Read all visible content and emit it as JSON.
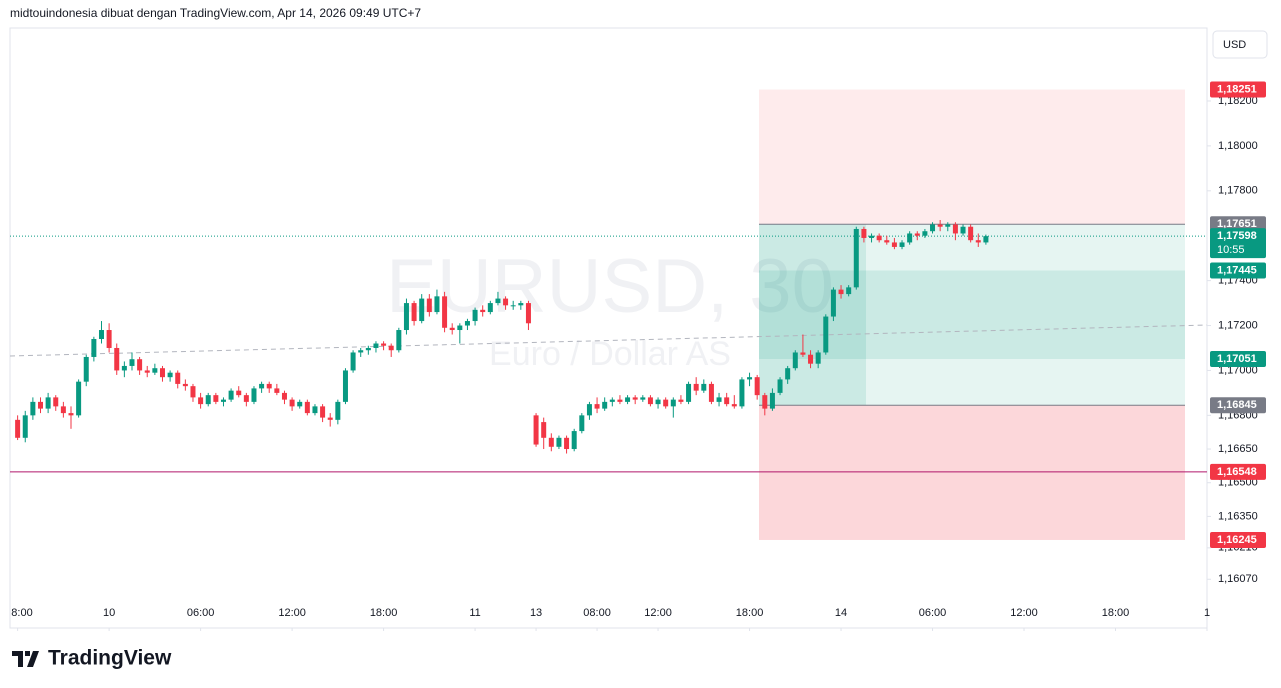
{
  "chart_data": {
    "type": "candlestick",
    "attribution": "midtouindonesia dibuat dengan TradingView.com, Apr 14, 2026 09:49 UTC+7",
    "currency": "USD",
    "watermark": "EURUSD, 30",
    "description": "Euro / Dollar AS",
    "brand": "TradingView",
    "up_color": "#089981",
    "down_color": "#f23645",
    "ylim": [
      1.15853,
      1.18525
    ],
    "yticks": [
      {
        "value": 1.182,
        "label": "1,18200"
      },
      {
        "value": 1.18,
        "label": "1,18000"
      },
      {
        "value": 1.178,
        "label": "1,17800"
      },
      {
        "value": 1.174,
        "label": "1,17400"
      },
      {
        "value": 1.172,
        "label": "1,17200"
      },
      {
        "value": 1.17,
        "label": "1,17000"
      },
      {
        "value": 1.168,
        "label": "1,16800"
      },
      {
        "value": 1.1665,
        "label": "1,16650"
      },
      {
        "value": 1.165,
        "label": "1,16500"
      },
      {
        "value": 1.1635,
        "label": "1,16350"
      },
      {
        "value": 1.1621,
        "label": "1,16210"
      },
      {
        "value": 1.1607,
        "label": "1,16070"
      }
    ],
    "xlim": [
      -1,
      156
    ],
    "xticks": [
      {
        "value": 0,
        "label": "8:00"
      },
      {
        "value": 12,
        "label": "10"
      },
      {
        "value": 24,
        "label": "06:00"
      },
      {
        "value": 36,
        "label": "12:00"
      },
      {
        "value": 48,
        "label": "18:00"
      },
      {
        "value": 60,
        "label": "11"
      },
      {
        "value": 68,
        "label": "13"
      },
      {
        "value": 76,
        "label": "08:00"
      },
      {
        "value": 84,
        "label": "12:00"
      },
      {
        "value": 96,
        "label": "18:00"
      },
      {
        "value": 108,
        "label": "14"
      },
      {
        "value": 120,
        "label": "06:00"
      },
      {
        "value": 132,
        "label": "12:00"
      },
      {
        "value": 144,
        "label": "18:00"
      },
      {
        "value": 156,
        "label": "1"
      }
    ],
    "price_labels": [
      {
        "value": 1.18251,
        "label": "1,18251",
        "color": "#f23645"
      },
      {
        "value": 1.17651,
        "label": "1,17651",
        "color": "#787b86"
      },
      {
        "value": 1.17598,
        "label": "1,17598",
        "countdown": "10:55",
        "color": "#089981"
      },
      {
        "value": 1.17445,
        "label": "1,17445",
        "color": "#089981"
      },
      {
        "value": 1.17051,
        "label": "1,17051",
        "color": "#089981"
      },
      {
        "value": 1.16845,
        "label": "1,16845",
        "color": "#787b86"
      },
      {
        "value": 1.16548,
        "label": "1,16548",
        "color": "#f23645"
      },
      {
        "value": 1.16245,
        "label": "1,16245",
        "color": "#f23645"
      }
    ],
    "candles": [
      [
        1.1678,
        1.168,
        1.1669,
        1.167
      ],
      [
        1.167,
        1.1682,
        1.1668,
        1.168
      ],
      [
        1.168,
        1.1688,
        1.1678,
        1.1686
      ],
      [
        1.1686,
        1.1688,
        1.1681,
        1.1683
      ],
      [
        1.1683,
        1.169,
        1.1681,
        1.1688
      ],
      [
        1.1688,
        1.1689,
        1.1682,
        1.1684
      ],
      [
        1.1684,
        1.1686,
        1.1679,
        1.1681
      ],
      [
        1.1681,
        1.1684,
        1.1674,
        1.168
      ],
      [
        1.168,
        1.1696,
        1.1679,
        1.1695
      ],
      [
        1.1695,
        1.1707,
        1.1693,
        1.1706
      ],
      [
        1.1706,
        1.1715,
        1.1704,
        1.1714
      ],
      [
        1.1714,
        1.1722,
        1.1712,
        1.1718
      ],
      [
        1.1718,
        1.1721,
        1.1708,
        1.171
      ],
      [
        1.171,
        1.1712,
        1.1698,
        1.17
      ],
      [
        1.17,
        1.1704,
        1.1697,
        1.1702
      ],
      [
        1.1702,
        1.1708,
        1.17,
        1.1705
      ],
      [
        1.1705,
        1.1706,
        1.1698,
        1.17
      ],
      [
        1.17,
        1.1702,
        1.1697,
        1.1699
      ],
      [
        1.1699,
        1.1703,
        1.1698,
        1.1701
      ],
      [
        1.1701,
        1.1702,
        1.1695,
        1.1697
      ],
      [
        1.1697,
        1.17,
        1.1695,
        1.1699
      ],
      [
        1.1699,
        1.17,
        1.1692,
        1.1694
      ],
      [
        1.1694,
        1.1696,
        1.1691,
        1.1693
      ],
      [
        1.1693,
        1.1694,
        1.1686,
        1.1688
      ],
      [
        1.1688,
        1.169,
        1.1683,
        1.1685
      ],
      [
        1.1685,
        1.169,
        1.1684,
        1.1689
      ],
      [
        1.1689,
        1.169,
        1.1685,
        1.1686
      ],
      [
        1.1686,
        1.1688,
        1.1684,
        1.1687
      ],
      [
        1.1687,
        1.1692,
        1.1686,
        1.1691
      ],
      [
        1.1691,
        1.1693,
        1.1688,
        1.1689
      ],
      [
        1.1689,
        1.169,
        1.1684,
        1.1686
      ],
      [
        1.1686,
        1.1693,
        1.1685,
        1.1692
      ],
      [
        1.1692,
        1.1695,
        1.169,
        1.1694
      ],
      [
        1.1694,
        1.1695,
        1.169,
        1.1692
      ],
      [
        1.1692,
        1.1694,
        1.1689,
        1.169
      ],
      [
        1.169,
        1.1691,
        1.1685,
        1.1687
      ],
      [
        1.1687,
        1.1688,
        1.1682,
        1.1684
      ],
      [
        1.1684,
        1.1687,
        1.1683,
        1.1686
      ],
      [
        1.1686,
        1.1687,
        1.168,
        1.1681
      ],
      [
        1.1681,
        1.1685,
        1.168,
        1.1684
      ],
      [
        1.1684,
        1.1685,
        1.1677,
        1.1679
      ],
      [
        1.1679,
        1.1681,
        1.1675,
        1.1678
      ],
      [
        1.1678,
        1.1687,
        1.1676,
        1.1686
      ],
      [
        1.1686,
        1.1701,
        1.1685,
        1.17
      ],
      [
        1.17,
        1.1709,
        1.1699,
        1.1708
      ],
      [
        1.1708,
        1.171,
        1.1706,
        1.1709
      ],
      [
        1.1709,
        1.1711,
        1.1707,
        1.171
      ],
      [
        1.171,
        1.1713,
        1.1708,
        1.1712
      ],
      [
        1.1712,
        1.1713,
        1.1709,
        1.1711
      ],
      [
        1.1711,
        1.1712,
        1.1706,
        1.1709
      ],
      [
        1.1709,
        1.1719,
        1.1708,
        1.1718
      ],
      [
        1.1718,
        1.1732,
        1.1716,
        1.173
      ],
      [
        1.173,
        1.1731,
        1.172,
        1.1722
      ],
      [
        1.1722,
        1.1734,
        1.1721,
        1.1732
      ],
      [
        1.1732,
        1.1734,
        1.1724,
        1.1726
      ],
      [
        1.1726,
        1.1736,
        1.1725,
        1.1733
      ],
      [
        1.1733,
        1.1735,
        1.1717,
        1.1719
      ],
      [
        1.1719,
        1.1721,
        1.1716,
        1.1718
      ],
      [
        1.1718,
        1.1721,
        1.1712,
        1.172
      ],
      [
        1.172,
        1.1723,
        1.1718,
        1.1722
      ],
      [
        1.1722,
        1.1728,
        1.172,
        1.1727
      ],
      [
        1.1727,
        1.1729,
        1.1724,
        1.1726
      ],
      [
        1.1726,
        1.1731,
        1.1725,
        1.173
      ],
      [
        1.173,
        1.1735,
        1.1729,
        1.1732
      ],
      [
        1.1732,
        1.1733,
        1.1727,
        1.1729
      ],
      [
        1.1729,
        1.1731,
        1.1727,
        1.1729
      ],
      [
        1.1729,
        1.1731,
        1.1727,
        1.173
      ],
      [
        1.173,
        1.1731,
        1.1718,
        1.1721
      ],
      [
        1.168,
        1.1681,
        1.1666,
        1.1667
      ],
      [
        1.1677,
        1.1679,
        1.1665,
        1.167
      ],
      [
        1.167,
        1.1672,
        1.1664,
        1.1666
      ],
      [
        1.1666,
        1.1671,
        1.1665,
        1.167
      ],
      [
        1.167,
        1.1671,
        1.1663,
        1.1665
      ],
      [
        1.1665,
        1.1674,
        1.1664,
        1.1673
      ],
      [
        1.1673,
        1.1681,
        1.1672,
        1.168
      ],
      [
        1.168,
        1.1686,
        1.1678,
        1.1685
      ],
      [
        1.1685,
        1.1688,
        1.1681,
        1.1683
      ],
      [
        1.1683,
        1.1688,
        1.1682,
        1.1686
      ],
      [
        1.1686,
        1.1688,
        1.1684,
        1.1687
      ],
      [
        1.1687,
        1.1689,
        1.1685,
        1.1686
      ],
      [
        1.1686,
        1.1689,
        1.1685,
        1.1688
      ],
      [
        1.1688,
        1.1689,
        1.1685,
        1.1687
      ],
      [
        1.1687,
        1.1689,
        1.1686,
        1.1688
      ],
      [
        1.1688,
        1.1689,
        1.1684,
        1.1685
      ],
      [
        1.1685,
        1.1688,
        1.1683,
        1.1687
      ],
      [
        1.1687,
        1.1688,
        1.1683,
        1.1684
      ],
      [
        1.1684,
        1.1688,
        1.1679,
        1.1687
      ],
      [
        1.1687,
        1.1689,
        1.1685,
        1.1686
      ],
      [
        1.1686,
        1.1695,
        1.1685,
        1.1694
      ],
      [
        1.1694,
        1.1697,
        1.1689,
        1.1691
      ],
      [
        1.1691,
        1.1696,
        1.169,
        1.1694
      ],
      [
        1.1694,
        1.1695,
        1.1685,
        1.1686
      ],
      [
        1.1686,
        1.169,
        1.1684,
        1.1688
      ],
      [
        1.1688,
        1.169,
        1.1684,
        1.1685
      ],
      [
        1.1685,
        1.1689,
        1.1683,
        1.1684
      ],
      [
        1.1684,
        1.1697,
        1.1683,
        1.1696
      ],
      [
        1.1696,
        1.1699,
        1.1693,
        1.1697
      ],
      [
        1.1697,
        1.1698,
        1.1687,
        1.1689
      ],
      [
        1.1689,
        1.169,
        1.168,
        1.1683
      ],
      [
        1.1683,
        1.1692,
        1.1682,
        1.169
      ],
      [
        1.169,
        1.1697,
        1.1689,
        1.1696
      ],
      [
        1.1696,
        1.1702,
        1.1694,
        1.1701
      ],
      [
        1.1701,
        1.1709,
        1.17,
        1.1708
      ],
      [
        1.1708,
        1.1716,
        1.1706,
        1.1707
      ],
      [
        1.1707,
        1.1709,
        1.1701,
        1.1703
      ],
      [
        1.1703,
        1.1709,
        1.1701,
        1.1708
      ],
      [
        1.1708,
        1.1725,
        1.1707,
        1.1724
      ],
      [
        1.1724,
        1.1737,
        1.1722,
        1.1736
      ],
      [
        1.1736,
        1.1738,
        1.1732,
        1.1734
      ],
      [
        1.1734,
        1.1738,
        1.1733,
        1.1737
      ],
      [
        1.1737,
        1.1764,
        1.1736,
        1.1763
      ],
      [
        1.1763,
        1.1764,
        1.1757,
        1.1759
      ],
      [
        1.1759,
        1.1761,
        1.1757,
        1.176
      ],
      [
        1.176,
        1.1761,
        1.1757,
        1.1758
      ],
      [
        1.1758,
        1.176,
        1.1756,
        1.1757
      ],
      [
        1.1757,
        1.1759,
        1.1754,
        1.1755
      ],
      [
        1.1755,
        1.1758,
        1.1754,
        1.1757
      ],
      [
        1.1757,
        1.1762,
        1.1756,
        1.1761
      ],
      [
        1.1761,
        1.1762,
        1.1758,
        1.176
      ],
      [
        1.176,
        1.1763,
        1.1759,
        1.1762
      ],
      [
        1.1762,
        1.1766,
        1.1761,
        1.1765
      ],
      [
        1.1765,
        1.1767,
        1.1762,
        1.1764
      ],
      [
        1.1764,
        1.1766,
        1.1762,
        1.1765
      ],
      [
        1.1765,
        1.1766,
        1.1758,
        1.1761
      ],
      [
        1.1761,
        1.1765,
        1.176,
        1.1764
      ],
      [
        1.1764,
        1.1765,
        1.1757,
        1.1758
      ],
      [
        1.1758,
        1.1761,
        1.1755,
        1.1757
      ],
      [
        1.1757,
        1.17605,
        1.1756,
        1.17598
      ]
    ]
  }
}
